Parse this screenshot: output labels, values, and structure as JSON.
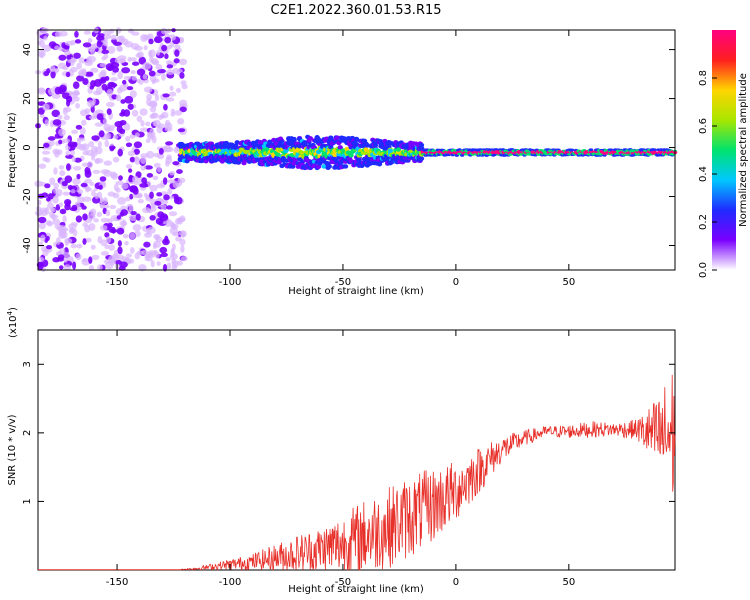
{
  "title": "C2E1.2022.360.01.53.R15",
  "colors": {
    "snr_line": "#e8302a",
    "spectrogram_colormap": [
      "#d9b3ff",
      "#7a00ff",
      "#1f2bff",
      "#00c8ff",
      "#00e36e",
      "#a9e600",
      "#ffd400",
      "#ff1f1f",
      "#ff0080"
    ],
    "frame": "#000000"
  },
  "chart_data": [
    {
      "type": "heatmap",
      "name": "spectrogram",
      "xlabel": "Height of straight line (km)",
      "ylabel": "Frequency (Hz)",
      "xlim": [
        -185,
        97
      ],
      "ylim": [
        -50,
        48
      ],
      "x_ticks": [
        -150,
        -100,
        -50,
        0,
        50
      ],
      "y_ticks": [
        -40,
        -20,
        0,
        20,
        40
      ],
      "colorbar": {
        "label": "Normalized spectral amplitude",
        "range": [
          0.0,
          1.0
        ],
        "ticks": [
          "0.0",
          "0.2",
          "0.4",
          "0.6",
          "0.8"
        ]
      },
      "features": {
        "noise_region_x": [
          -185,
          -120
        ],
        "signal_band_freq_hz": -2,
        "strong_signal_x": [
          -15,
          97
        ]
      }
    },
    {
      "type": "line",
      "name": "snr",
      "xlabel": "Height of straight line (km)",
      "ylabel": "SNR (10 * v/v)",
      "y_multiplier": "(x10",
      "y_multiplier_exp": "4",
      "y_multiplier_close": ")",
      "xlim": [
        -185,
        97
      ],
      "ylim": [
        0,
        3.5
      ],
      "x_ticks": [
        -150,
        -100,
        -50,
        0,
        50
      ],
      "y_ticks": [
        1,
        2,
        3
      ],
      "envelope": {
        "x": [
          -185,
          -125,
          -115,
          -100,
          -90,
          -80,
          -70,
          -60,
          -50,
          -40,
          -30,
          -20,
          -10,
          0,
          10,
          20,
          30,
          40,
          50,
          60,
          70,
          80,
          90,
          97
        ],
        "mean": [
          0.0,
          0.0,
          0.02,
          0.08,
          0.12,
          0.18,
          0.24,
          0.3,
          0.38,
          0.5,
          0.62,
          0.78,
          0.95,
          1.15,
          1.45,
          1.75,
          1.92,
          2.02,
          2.02,
          2.05,
          2.05,
          2.05,
          1.95,
          2.0
        ],
        "amp": [
          0.0,
          0.0,
          0.02,
          0.08,
          0.12,
          0.2,
          0.28,
          0.34,
          0.45,
          0.55,
          0.6,
          0.6,
          0.55,
          0.45,
          0.35,
          0.2,
          0.12,
          0.08,
          0.1,
          0.12,
          0.1,
          0.15,
          0.6,
          1.1
        ]
      }
    }
  ]
}
